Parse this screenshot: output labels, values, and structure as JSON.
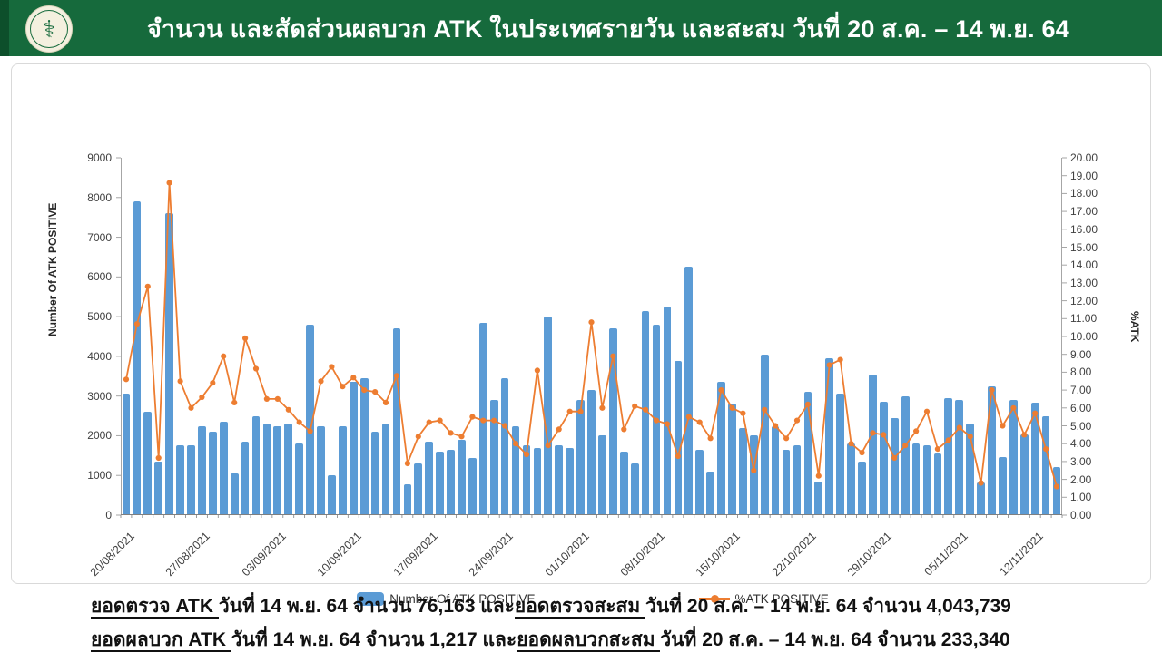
{
  "header": {
    "title": "จำนวน และสัดส่วนผลบวก ATK ในประเทศรายวัน และสะสม วันที่ 20 ส.ค. – 14 พ.ย. 64",
    "logo": {
      "name": "Ministry of Public Health seal",
      "glyph": "⚕"
    }
  },
  "colors": {
    "header_green": "#166a3c",
    "bar_blue": "#5b9bd5",
    "line_orange": "#ed7d31",
    "axis_line": "#a6a6a6",
    "axis_text": "#404040"
  },
  "chart_data": {
    "type": "combo-bar-line",
    "x_start": "20/08/2021",
    "x_end": "14/11/2021",
    "n_points": 87,
    "x_labels": [
      "20/08/2021",
      "27/08/2021",
      "03/09/2021",
      "10/09/2021",
      "17/09/2021",
      "24/09/2021",
      "01/10/2021",
      "08/10/2021",
      "15/10/2021",
      "22/10/2021",
      "29/10/2021",
      "05/11/2021",
      "12/11/2021"
    ],
    "label_every": 7,
    "left_axis": {
      "title": "Number Of ATK POSITIVE",
      "min": 0,
      "max": 9000,
      "step": 1000
    },
    "right_axis": {
      "title": "%ATK",
      "min": 0,
      "max": 20,
      "step": 1
    },
    "series": [
      {
        "name": "Number Of ATK POSITIVE",
        "type": "bar",
        "axis": "left",
        "color": "#5b9bd5",
        "values": [
          3050,
          7900,
          2600,
          1350,
          7600,
          1750,
          1750,
          2250,
          2100,
          2350,
          1050,
          1850,
          2500,
          2300,
          2250,
          2300,
          1800,
          4800,
          2250,
          1000,
          2250,
          3350,
          3450,
          2100,
          2300,
          4700,
          780,
          1300,
          1850,
          1600,
          1650,
          1900,
          1450,
          4850,
          2900,
          3450,
          2250,
          1750,
          1700,
          5000,
          1750,
          1700,
          2900,
          3150,
          2000,
          4700,
          1600,
          1300,
          5150,
          4800,
          5250,
          3880,
          6270,
          1650,
          1100,
          3350,
          2800,
          2200,
          2000,
          4050,
          2250,
          1650,
          1750,
          3100,
          850,
          3950,
          3050,
          1800,
          1350,
          3550,
          2850,
          2450,
          3000,
          1800,
          1750,
          1550,
          2950,
          2900,
          2300,
          820,
          3250,
          1470,
          2900,
          2030,
          2830,
          2480,
          1217
        ]
      },
      {
        "name": "%ATK POSITIVE",
        "type": "line",
        "axis": "right",
        "color": "#ed7d31",
        "values": [
          7.6,
          10.7,
          12.8,
          3.2,
          18.6,
          7.5,
          6.0,
          6.6,
          7.4,
          8.9,
          6.3,
          9.9,
          8.2,
          6.5,
          6.5,
          5.9,
          5.2,
          4.7,
          7.5,
          8.3,
          7.2,
          7.7,
          7.0,
          6.9,
          6.3,
          7.8,
          2.9,
          4.4,
          5.2,
          5.3,
          4.6,
          4.4,
          5.5,
          5.3,
          5.3,
          5.0,
          4.0,
          3.4,
          8.1,
          3.9,
          4.8,
          5.8,
          5.8,
          10.8,
          6.0,
          8.9,
          4.8,
          6.1,
          5.9,
          5.3,
          5.1,
          3.3,
          5.5,
          5.2,
          4.3,
          7.0,
          6.0,
          5.7,
          2.5,
          5.9,
          5.0,
          4.3,
          5.3,
          6.2,
          2.2,
          8.4,
          8.7,
          4.0,
          3.5,
          4.6,
          4.5,
          3.2,
          3.9,
          4.7,
          5.8,
          3.7,
          4.2,
          4.9,
          4.4,
          1.8,
          7.0,
          5.0,
          6.0,
          4.5,
          5.7,
          3.7,
          1.6
        ]
      }
    ],
    "legend": [
      {
        "label": "Number Of ATK POSITIVE",
        "marker": "bar-swatch",
        "color": "#5b9bd5"
      },
      {
        "label": "%ATK POSITIVE",
        "marker": "line-dot",
        "color": "#ed7d31"
      }
    ]
  },
  "footer": {
    "line1": [
      {
        "text": "ยอดตรวจ ATK ",
        "u": true
      },
      {
        "text": "วันที่ 14 พ.ย. 64 จำนวน 76,163 และ",
        "u": false
      },
      {
        "text": "ยอดตรวจสะสม ",
        "u": true
      },
      {
        "text": "วันที่ 20 ส.ค. – 14 พ.ย. 64 จำนวน 4,043,739",
        "u": false
      }
    ],
    "line2": [
      {
        "text": "ยอดผลบวก ATK ",
        "u": true
      },
      {
        "text": "วันที่ 14 พ.ย. 64 จำนวน 1,217 และ",
        "u": false
      },
      {
        "text": "ยอดผลบวกสะสม ",
        "u": true
      },
      {
        "text": "วันที่ 20 ส.ค. – 14 พ.ย. 64 จำนวน 233,340",
        "u": false
      }
    ]
  }
}
